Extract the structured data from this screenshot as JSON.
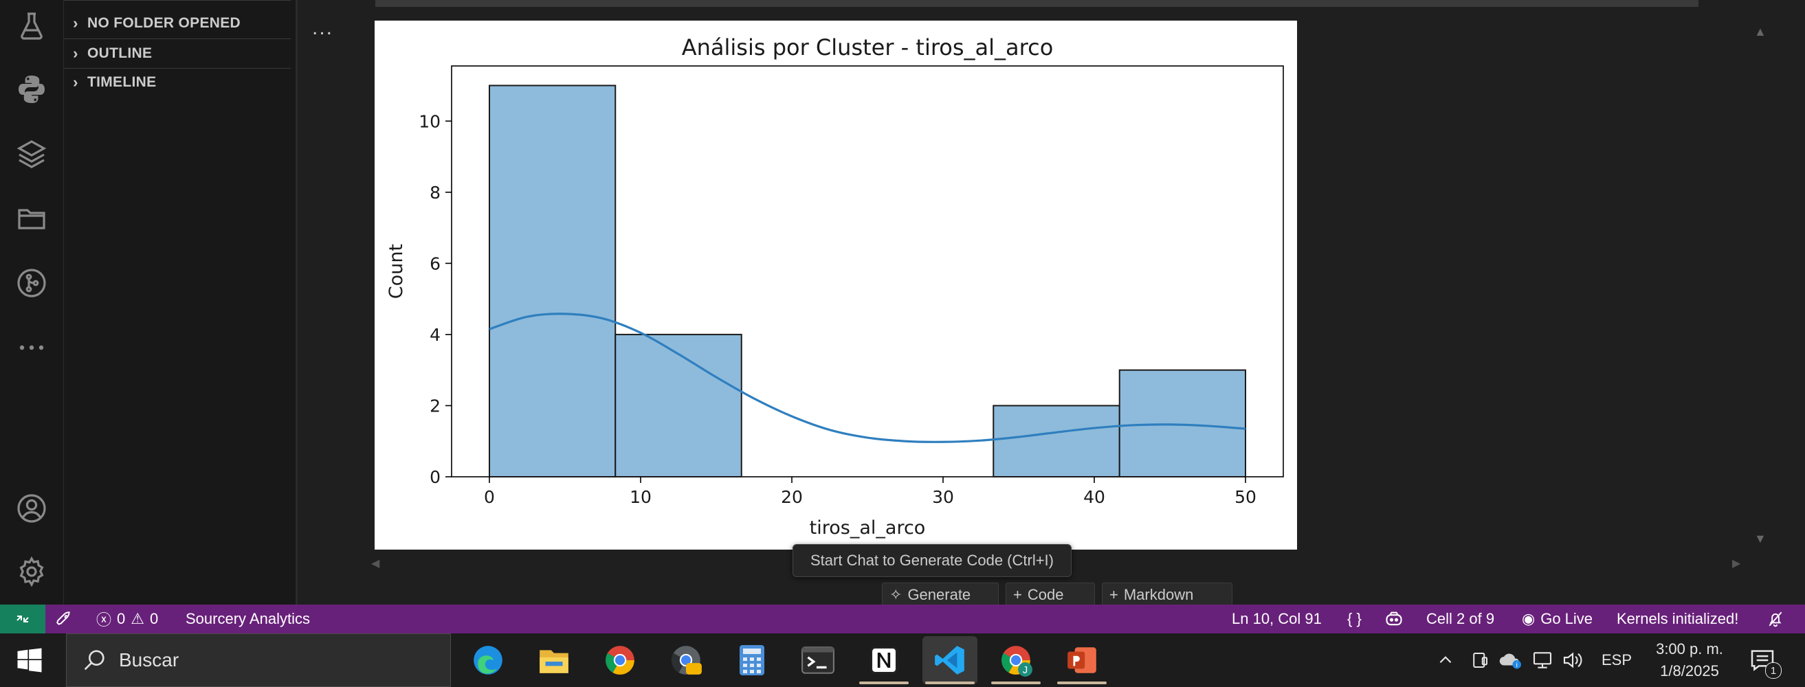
{
  "sidebar": {
    "sections": [
      {
        "label": "NO FOLDER OPENED"
      },
      {
        "label": "OUTLINE"
      },
      {
        "label": "TIMELINE"
      }
    ]
  },
  "activity_icons": [
    "beaker-icon",
    "python-icon",
    "layers-icon",
    "folder-icon",
    "git-graph-icon",
    "more-icon",
    "account-icon",
    "gear-icon"
  ],
  "editor": {
    "ellipsis": "...",
    "tooltip": "Start Chat to Generate Code (Ctrl+I)",
    "cell_buttons": {
      "generate": "Generate",
      "code": "Code",
      "markdown": "Markdown"
    }
  },
  "chart_data": {
    "type": "bar",
    "subtype": "histogram_with_kde",
    "title": "Análisis por Cluster - tiros_al_arco",
    "xlabel": "tiros_al_arco",
    "ylabel": "Count",
    "xlim": [
      -2.5,
      52.5
    ],
    "ylim": [
      0,
      11.55
    ],
    "xticks": [
      0,
      10,
      20,
      30,
      40,
      50
    ],
    "yticks": [
      0,
      2,
      4,
      6,
      8,
      10
    ],
    "bins": [
      {
        "x0": 0,
        "x1": 8.33,
        "count": 11
      },
      {
        "x0": 8.33,
        "x1": 16.67,
        "count": 4
      },
      {
        "x0": 16.67,
        "x1": 25,
        "count": 0
      },
      {
        "x0": 25,
        "x1": 33.33,
        "count": 0
      },
      {
        "x0": 33.33,
        "x1": 41.67,
        "count": 2
      },
      {
        "x0": 41.67,
        "x1": 50,
        "count": 3
      }
    ],
    "kde": {
      "x": [
        0,
        2.5,
        5,
        7.5,
        10,
        12.5,
        15,
        17.5,
        20,
        22.5,
        25,
        27.5,
        30,
        32.5,
        35,
        37.5,
        40,
        42.5,
        45,
        47.5,
        50
      ],
      "y": [
        4.15,
        4.5,
        4.58,
        4.45,
        4.05,
        3.45,
        2.8,
        2.2,
        1.7,
        1.32,
        1.1,
        1.0,
        0.98,
        1.02,
        1.12,
        1.25,
        1.37,
        1.45,
        1.47,
        1.43,
        1.35
      ]
    },
    "bar_color": "#8ebbdb",
    "bar_edge": "#1a1a1a",
    "kde_color": "#2f7fbf",
    "grid": false
  },
  "statusbar": {
    "errors": "0",
    "warnings": "0",
    "sourcery": "Sourcery Analytics",
    "position": "Ln 10, Col 91",
    "braces": "{ }",
    "cell": "Cell 2 of 9",
    "golive": "Go Live",
    "kernels": "Kernels initialized!",
    "accent": "#68217a",
    "remote_color": "#16825d"
  },
  "taskbar": {
    "search_placeholder": "Buscar",
    "apps": [
      "edge-icon",
      "file-explorer-icon",
      "chrome-icon",
      "chrome-dev-icon",
      "calculator-icon",
      "terminal-icon",
      "notion-icon",
      "vscode-icon",
      "chrome-profile-icon",
      "powerpoint-icon"
    ],
    "lang": "ESP",
    "time": "3:00 p. m.",
    "date": "1/8/2025",
    "notif_count": "1"
  }
}
